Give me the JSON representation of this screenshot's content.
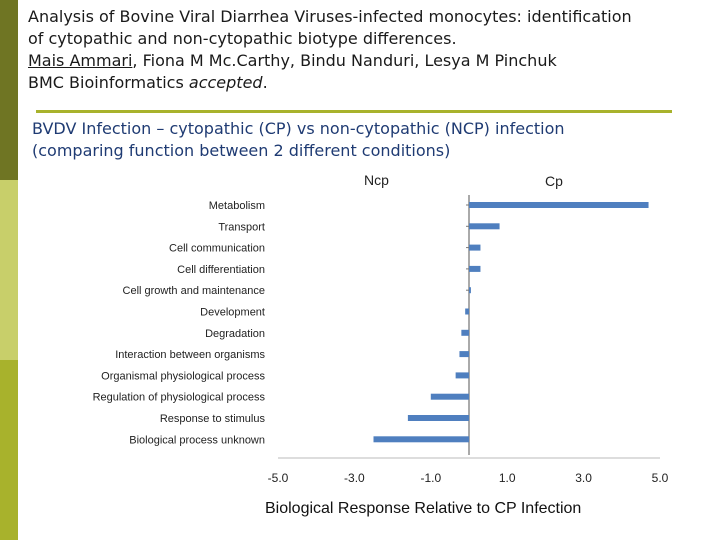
{
  "header": {
    "line1": "Analysis of Bovine Viral Diarrhea Viruses-infected monocytes: identification",
    "line2": "of cytopathic and non-cytopathic biotype differences.",
    "author_first": "Mais Ammari",
    "authors_rest": ", Fiona M Mc.Carthy, Bindu Nanduri, Lesya M Pinchuk",
    "journal": "BMC Bioinformatics ",
    "status": "accepted",
    "period": "."
  },
  "subtitle": {
    "line1": "BVDV Infection – cytopathic (CP) vs non-cytopathic (NCP) infection",
    "line2": "(comparing function between 2 different conditions)"
  },
  "colors": {
    "bar": "#4f7fbf",
    "accent": "#a8b22c",
    "sidebar_dark": "#6f7523",
    "sidebar_light": "#c8cf6a",
    "subtitle": "#1f3b73"
  },
  "chart_data": {
    "type": "bar",
    "orientation": "horizontal",
    "left_header": "Ncp",
    "right_header": "Cp",
    "xlabel": "Biological Response Relative to CP Infection",
    "xlim": [
      -5.0,
      5.0
    ],
    "xticks": [
      "-5.0",
      "-3.0",
      "-1.0",
      "1.0",
      "3.0",
      "5.0"
    ],
    "categories": [
      "Metabolism",
      "Transport",
      "Cell communication",
      "Cell differentiation",
      "Cell growth and maintenance",
      "Development",
      "Degradation",
      "Interaction between organisms",
      "Organismal physiological process",
      "Regulation of physiological process",
      "Response to stimulus",
      "Biological process unknown"
    ],
    "values": [
      4.7,
      0.8,
      0.3,
      0.3,
      0.05,
      -0.1,
      -0.2,
      -0.25,
      -0.35,
      -1.0,
      -1.6,
      -2.5
    ]
  }
}
